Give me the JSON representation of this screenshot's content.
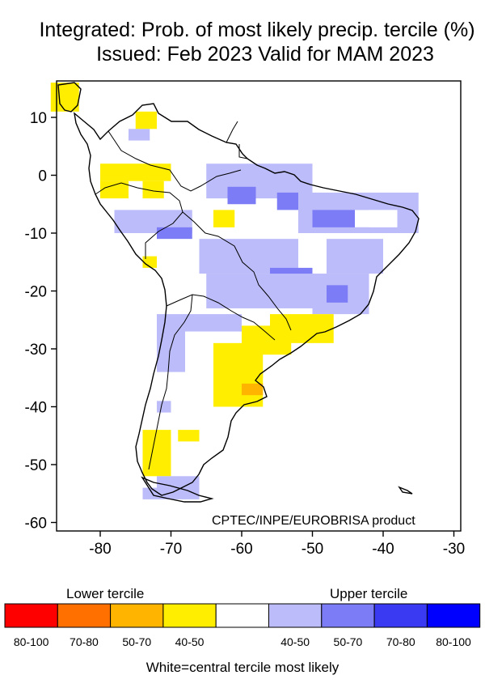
{
  "title": {
    "line1": "Integrated: Prob. of most likely precip. tercile (%)",
    "line2": "Issued: Feb 2023      Valid for MAM 2023"
  },
  "map": {
    "credit": "CPTEC/INPE/EUROBRISA product",
    "lon_ticks": [
      "-80",
      "-70",
      "-60",
      "-50",
      "-40",
      "-30"
    ],
    "lat_ticks": [
      "10",
      "0",
      "-10",
      "-20",
      "-30",
      "-40",
      "-50",
      "-60"
    ],
    "lon_range": [
      -87,
      -29
    ],
    "lat_range": [
      16,
      -61
    ],
    "colors": {
      "lower_80_100": "#ff0000",
      "lower_70_80": "#ff7000",
      "lower_50_70": "#ffb400",
      "lower_40_50": "#ffee00",
      "central": "#ffffff",
      "upper_40_50": "#bcbcfa",
      "upper_50_70": "#7c7cf6",
      "upper_70_80": "#3a3af2",
      "upper_80_100": "#0000ff"
    }
  },
  "legend": {
    "lower_label": "Lower tercile",
    "upper_label": "Upper tercile",
    "bins": [
      {
        "label": "80-100",
        "color": "#ff0000"
      },
      {
        "label": "70-80",
        "color": "#ff7000"
      },
      {
        "label": "50-70",
        "color": "#ffb400"
      },
      {
        "label": "40-50",
        "color": "#ffee00"
      },
      {
        "label": "",
        "color": "#ffffff"
      },
      {
        "label": "40-50",
        "color": "#bcbcfa"
      },
      {
        "label": "50-70",
        "color": "#7c7cf6"
      },
      {
        "label": "70-80",
        "color": "#3a3af2"
      },
      {
        "label": "80-100",
        "color": "#0000ff"
      }
    ],
    "footer": "White=central tercile most likely"
  }
}
